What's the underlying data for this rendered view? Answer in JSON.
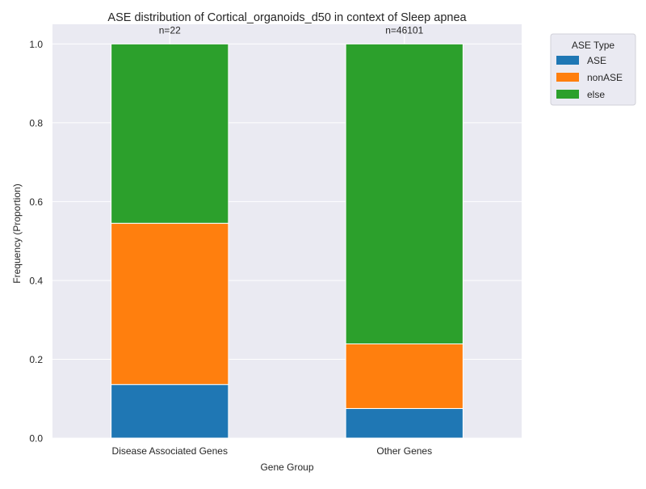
{
  "chart_data": {
    "type": "bar",
    "stacked": true,
    "title": "ASE distribution of Cortical_organoids_d50 in context of Sleep apnea",
    "xlabel": "Gene Group",
    "ylabel": "Frequency (Proportion)",
    "ylim": [
      0,
      1.05
    ],
    "yticks": [
      0.0,
      0.2,
      0.4,
      0.6,
      0.8,
      1.0
    ],
    "ytick_labels": [
      "0.0",
      "0.2",
      "0.4",
      "0.6",
      "0.8",
      "1.0"
    ],
    "grid": true,
    "legend_title": "ASE Type",
    "legend_position": "outside-top-right",
    "categories": [
      "Disease Associated Genes",
      "Other Genes"
    ],
    "bar_annotations": [
      "n=22",
      "n=46101"
    ],
    "series": [
      {
        "name": "ASE",
        "color": "#1f77b4",
        "values": [
          0.136,
          0.075
        ]
      },
      {
        "name": "nonASE",
        "color": "#ff7f0e",
        "values": [
          0.409,
          0.164
        ]
      },
      {
        "name": "else",
        "color": "#2ca02c",
        "values": [
          0.455,
          0.761
        ]
      }
    ],
    "plot_background": "#eaeaf2",
    "grid_color": "#ffffff"
  }
}
